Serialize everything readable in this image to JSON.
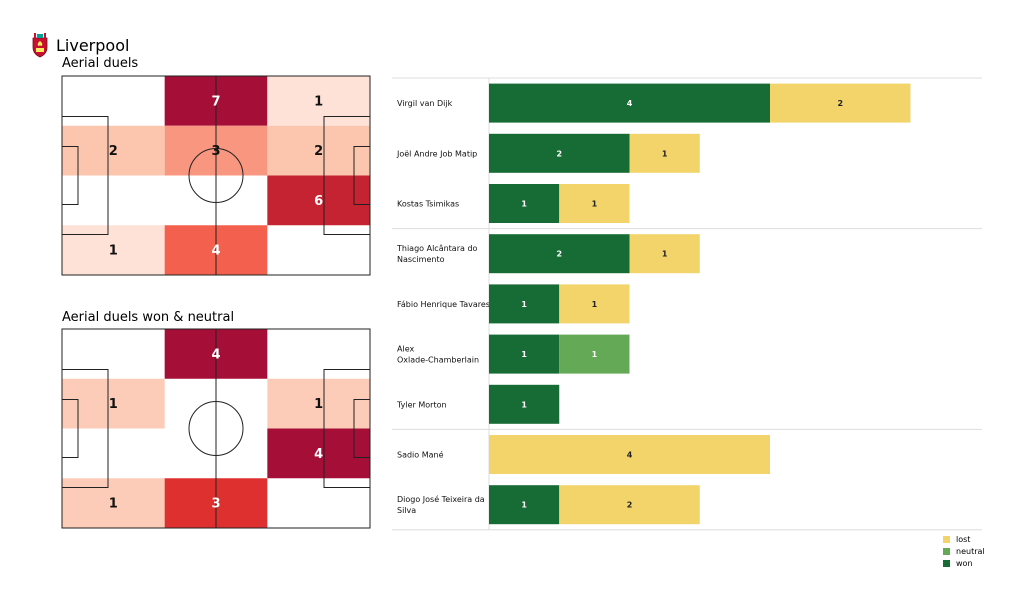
{
  "team": {
    "name": "Liverpool",
    "crest_icon": "liverpool-crest-icon"
  },
  "pitch_titles": [
    "Aerial duels",
    "Aerial duels won & neutral"
  ],
  "chart_data": [
    {
      "type": "heatmap",
      "title": "Aerial duels",
      "rows": [
        [
          null,
          7,
          1
        ],
        [
          2,
          3,
          2
        ],
        [
          null,
          null,
          6
        ],
        [
          1,
          4,
          null
        ]
      ],
      "max": 7
    },
    {
      "type": "heatmap",
      "title": "Aerial duels won & neutral",
      "rows": [
        [
          null,
          4,
          null
        ],
        [
          1,
          null,
          1
        ],
        [
          null,
          null,
          4
        ],
        [
          1,
          3,
          null
        ]
      ],
      "max": 4
    },
    {
      "type": "bar",
      "orientation": "horizontal",
      "stacked": true,
      "categories": [
        "Virgil van Dijk",
        "Joël Andre Job Matip",
        "Kostas Tsimikas",
        "Thiago Alcântara do Nascimento",
        "Fábio Henrique Tavares",
        "Alex Oxlade-Chamberlain",
        "Tyler Morton",
        "Sadio Mané",
        "Diogo José Teixeira da Silva"
      ],
      "category_lines": [
        [
          "Virgil van Dijk"
        ],
        [
          "Joël Andre Job Matip"
        ],
        [
          "Kostas Tsimikas"
        ],
        [
          "Thiago Alcântara do",
          "Nascimento"
        ],
        [
          "Fábio Henrique Tavares"
        ],
        [
          "Alex",
          "Oxlade-Chamberlain"
        ],
        [
          "Tyler Morton"
        ],
        [
          "Sadio Mané"
        ],
        [
          "Diogo José Teixeira da",
          "Silva"
        ]
      ],
      "group_breaks_after": [
        2,
        6
      ],
      "series": [
        {
          "name": "won",
          "color": "#176b35",
          "values": [
            4,
            2,
            1,
            2,
            1,
            1,
            1,
            0,
            1
          ]
        },
        {
          "name": "neutral",
          "color": "#64aa56",
          "values": [
            0,
            0,
            0,
            0,
            0,
            1,
            0,
            0,
            0
          ]
        },
        {
          "name": "lost",
          "color": "#f2d46b",
          "values": [
            2,
            1,
            1,
            1,
            1,
            0,
            0,
            4,
            2
          ]
        }
      ],
      "legend": {
        "placement": "bottom-right",
        "order": [
          "lost",
          "neutral",
          "won"
        ]
      }
    }
  ]
}
